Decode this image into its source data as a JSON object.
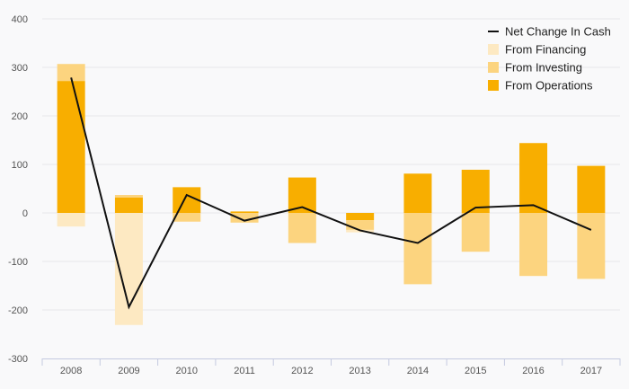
{
  "chart_data": {
    "type": "bar",
    "stacked": true,
    "categories": [
      "2008",
      "2009",
      "2010",
      "2011",
      "2012",
      "2013",
      "2014",
      "2015",
      "2016",
      "2017"
    ],
    "series": [
      {
        "name": "From Operations",
        "kind": "bar",
        "color": "#f8ae00",
        "values": [
          272,
          32,
          53,
          3,
          73,
          -15,
          81,
          89,
          144,
          97
        ]
      },
      {
        "name": "From Investing",
        "kind": "bar",
        "color": "#fcd47f",
        "values": [
          35,
          5,
          -18,
          -20,
          -62,
          -20,
          -147,
          -80,
          -130,
          -136
        ]
      },
      {
        "name": "From Financing",
        "kind": "bar",
        "color": "#fde9c2",
        "values": [
          -28,
          -231,
          0,
          0,
          0,
          -5,
          0,
          0,
          0,
          0
        ]
      },
      {
        "name": "Net Change In Cash",
        "kind": "line",
        "color": "#111111",
        "values": [
          279,
          -194,
          37,
          -16,
          12,
          -36,
          -62,
          11,
          16,
          -35
        ]
      }
    ],
    "ylim": [
      -300,
      400
    ],
    "yticks": [
      -300,
      -200,
      -100,
      0,
      100,
      200,
      300,
      400
    ],
    "title": "",
    "xlabel": "",
    "ylabel": "",
    "grid": true,
    "legend_position": "top-right",
    "legend_order": [
      "Net Change In Cash",
      "From Financing",
      "From Investing",
      "From Operations"
    ]
  }
}
